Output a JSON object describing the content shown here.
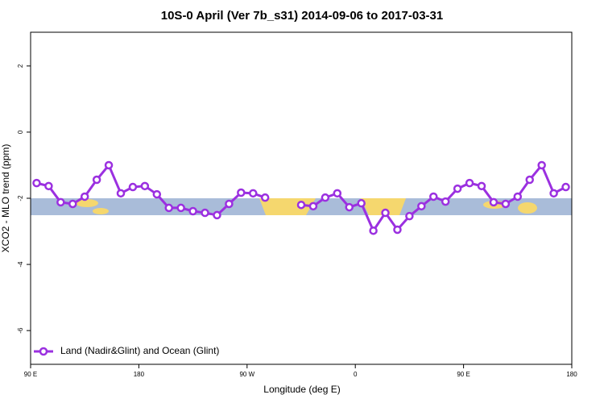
{
  "chart_data": {
    "type": "line",
    "title": "10S-0 April (Ver 7b_s31)   2014-09-06 to 2017-03-31",
    "xlabel": "Longitude (deg E)",
    "ylabel": "XCO2 - MLO trend (ppm)",
    "xlim": [
      90,
      540
    ],
    "ylim": [
      -7.02,
      3.02
    ],
    "xticks": [
      {
        "value": 90,
        "label": "90 E"
      },
      {
        "value": 180,
        "label": "180"
      },
      {
        "value": 270,
        "label": "90 W"
      },
      {
        "value": 360,
        "label": "0"
      },
      {
        "value": 450,
        "label": "90 E"
      },
      {
        "value": 540,
        "label": "180"
      }
    ],
    "yticks": [
      -6,
      -4,
      -2,
      0,
      2
    ],
    "legend": "bottom-left",
    "x": [
      95,
      105,
      115,
      125,
      135,
      145,
      155,
      165,
      175,
      185,
      195,
      205,
      215,
      225,
      235,
      245,
      255,
      265,
      275,
      285,
      295,
      305,
      315,
      325,
      335,
      345,
      355,
      365,
      375,
      385,
      395,
      405,
      415,
      425,
      435,
      445,
      455,
      465,
      475,
      485,
      495,
      505,
      515,
      525,
      535
    ],
    "series": [
      {
        "name": "Land (Nadir&Glint) and Ocean (Glint)",
        "color": "#9b30e0",
        "values": [
          -1.54,
          -1.63,
          -2.12,
          -2.17,
          -1.95,
          -1.44,
          -1.0,
          -1.85,
          -1.66,
          -1.63,
          -1.88,
          -2.29,
          -2.29,
          -2.39,
          -2.44,
          -2.51,
          -2.17,
          -1.83,
          -1.85,
          -1.98,
          null,
          null,
          -2.2,
          -2.24,
          -1.98,
          -1.85,
          -2.27,
          -2.15,
          -2.98,
          -2.44,
          -2.95,
          -2.54,
          -2.24,
          -1.95,
          -2.1,
          -1.71,
          -1.54,
          -1.63,
          -2.12,
          -2.17,
          -1.95,
          -1.44,
          -1.0,
          -1.85,
          -1.66
        ]
      }
    ]
  }
}
